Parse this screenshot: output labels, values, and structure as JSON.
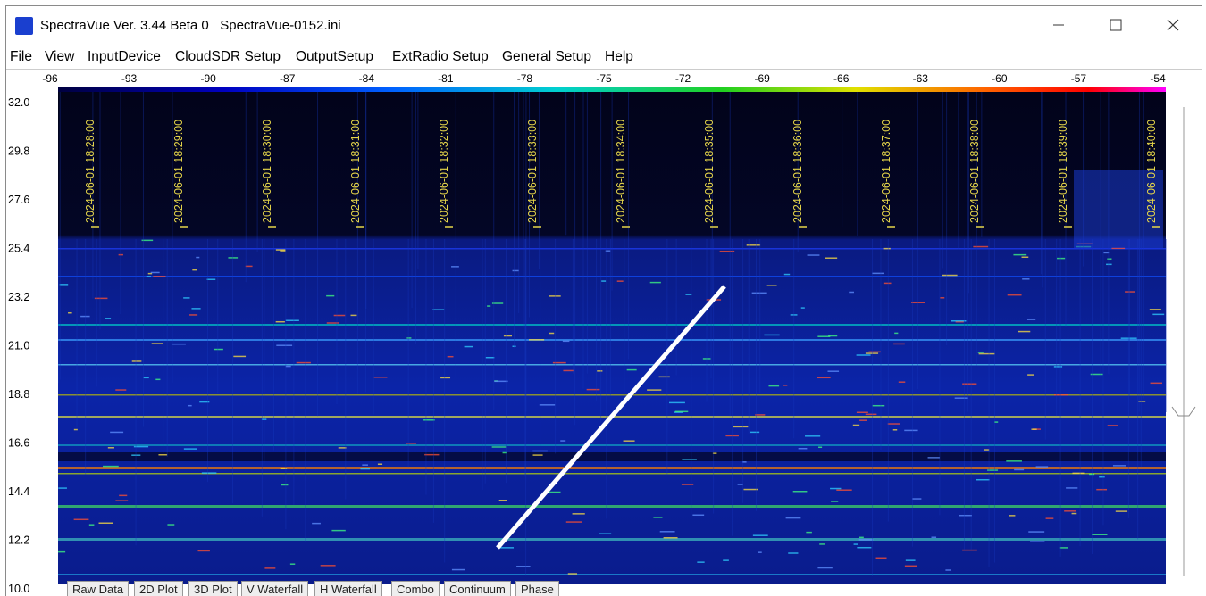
{
  "window": {
    "title": "SpectraVue Ver. 3.44 Beta 0   SpectraVue-0152.ini"
  },
  "menu": [
    "File",
    "View",
    "InputDevice",
    "CloudSDR Setup",
    "OutputSetup",
    "ExtRadio Setup",
    "General Setup",
    "Help"
  ],
  "color_scale": {
    "ticks": [
      "-96",
      "-93",
      "-90",
      "-87",
      "-84",
      "-81",
      "-78",
      "-75",
      "-72",
      "-69",
      "-66",
      "-63",
      "-60",
      "-57",
      "-54"
    ]
  },
  "y_axis": {
    "ticks": [
      "32.0",
      "29.8",
      "27.6",
      "25.4",
      "23.2",
      "21.0",
      "18.8",
      "16.6",
      "14.4",
      "12.2",
      "10.0"
    ]
  },
  "timestamps": [
    "2024-06-01 18:28:00",
    "2024-06-01 18:29:00",
    "2024-06-01 18:30:00",
    "2024-06-01 18:31:00",
    "2024-06-01 18:32:00",
    "2024-06-01 18:33:00",
    "2024-06-01 18:34:00",
    "2024-06-01 18:35:00",
    "2024-06-01 18:36:00",
    "2024-06-01 18:37:00",
    "2024-06-01 18:38:00",
    "2024-06-01 18:39:00",
    "2024-06-01 18:40:00"
  ],
  "tabs": [
    "Raw Data",
    "2D Plot",
    "3D Plot",
    "V Waterfall",
    "H Waterfall",
    "Combo",
    "Continuum",
    "Phase"
  ]
}
